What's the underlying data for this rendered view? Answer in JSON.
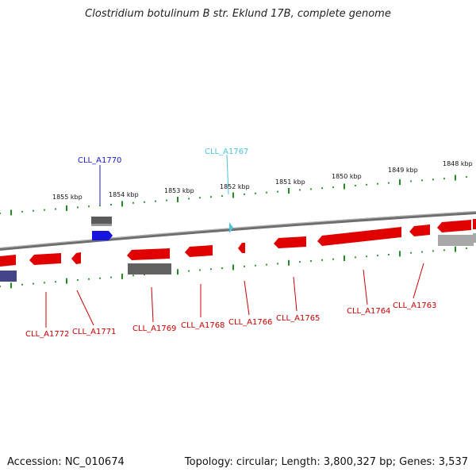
{
  "title": "Clostridium botulinum B str. Eklund 17B, complete genome",
  "footer": {
    "accession": "Accession: NC_010674",
    "summary": "Topology: circular; Length: 3,800,327 bp; Genes: 3,537"
  },
  "colors": {
    "forward_label": "#1a1acc",
    "highlight_label": "#4cc3dd",
    "reverse_label": "#cc0000",
    "cds": "#ee0000",
    "pseudo": "#666666",
    "pseudo_light": "#a8a8a8",
    "rna": "#444488",
    "backbone": "#777777",
    "ticks": "#228b22"
  },
  "tick_labels": [
    "1855 kbp",
    "1854 kbp",
    "1853 kbp",
    "1852 kbp",
    "1851 kbp",
    "1850 kbp",
    "1849 kbp",
    "1848 kbp"
  ],
  "gene_labels": {
    "top": [
      {
        "text": "CLL_A1770",
        "color": "forward"
      },
      {
        "text": "CLL_A1767",
        "color": "highlight"
      }
    ],
    "bottom": [
      "CLL_A1772",
      "CLL_A1771",
      "CLL_A1769",
      "CLL_A1768",
      "CLL_A1766",
      "CLL_A1765",
      "CLL_A1764",
      "CLL_A1763"
    ]
  }
}
